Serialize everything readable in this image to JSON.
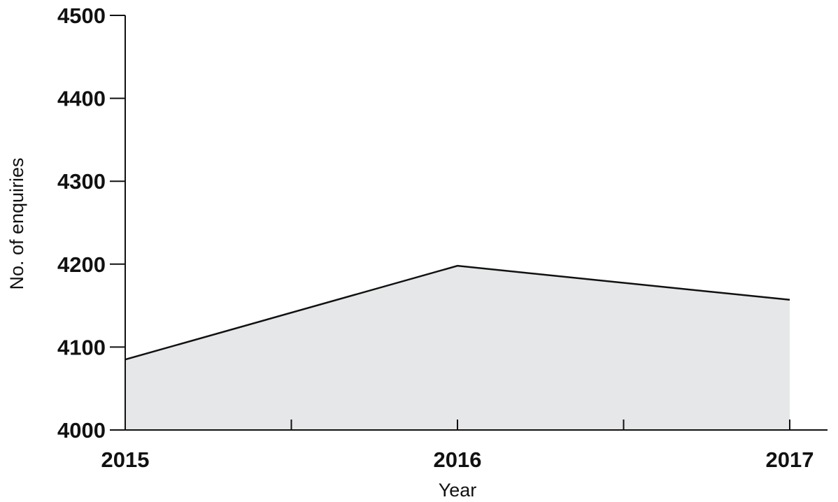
{
  "chart_data": {
    "type": "area",
    "x": [
      2015,
      2016,
      2017
    ],
    "x_tick_labels": [
      "2015",
      "2016",
      "2017"
    ],
    "x_minor_ticks": [
      2015.5,
      2016.5
    ],
    "series": [
      {
        "values": [
          4085,
          4198,
          4157
        ]
      }
    ],
    "y_ticks": [
      4000,
      4100,
      4200,
      4300,
      4400,
      4500
    ],
    "y_tick_labels": [
      "4000",
      "4100",
      "4200",
      "4300",
      "4400",
      "4500"
    ],
    "xlim": [
      2015,
      2017.2
    ],
    "ylim": [
      4000,
      4500
    ],
    "xlabel": "Year",
    "ylabel": "No. of enquiries",
    "grid": false,
    "colors": {
      "fill": "#e6e7e8",
      "line": "#111111",
      "axis": "#111111"
    }
  }
}
